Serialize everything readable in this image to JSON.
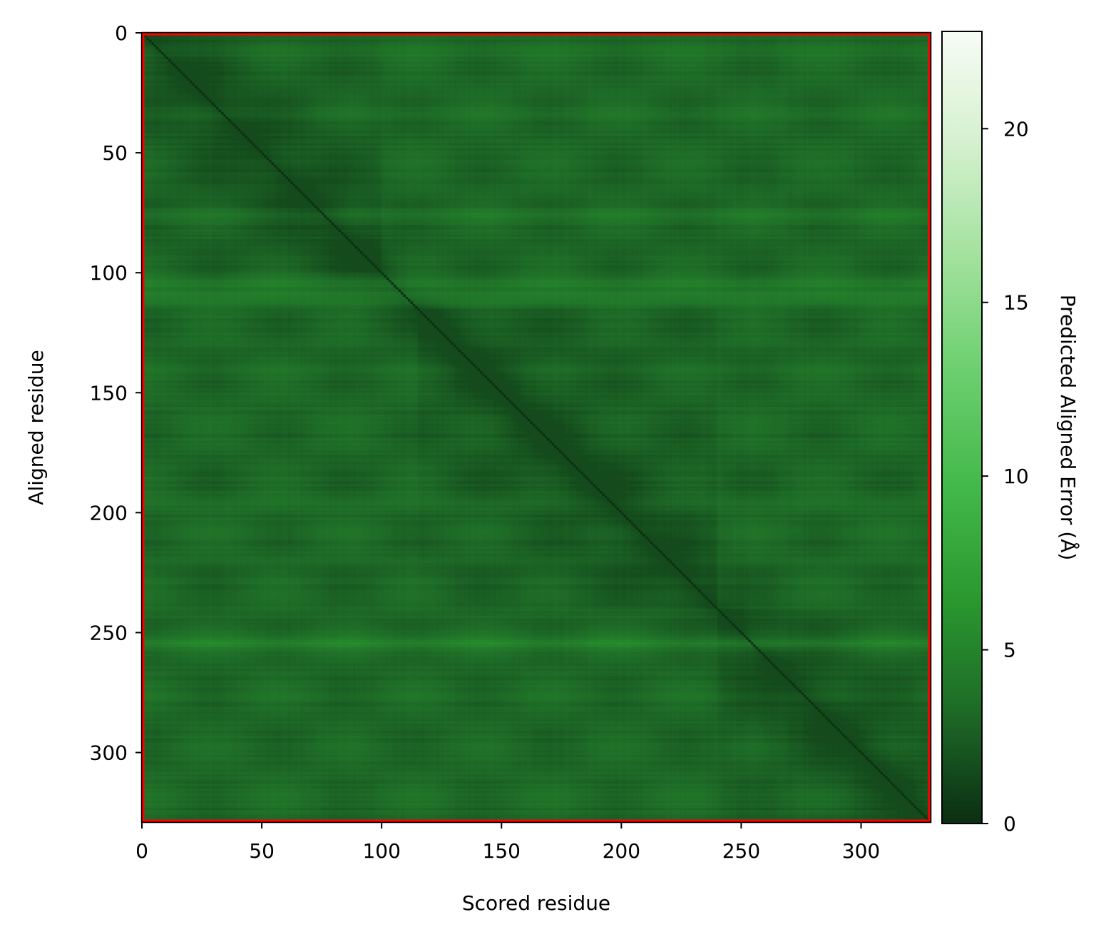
{
  "chart_data": {
    "type": "heatmap",
    "title": "",
    "xlabel": "Scored residue",
    "ylabel": "Aligned residue",
    "colorbar_label": "Predicted Aligned Error (Å)",
    "n_residues": 329,
    "xlim": [
      0,
      329
    ],
    "ylim": [
      329,
      0
    ],
    "x_ticks": [
      0,
      50,
      100,
      150,
      200,
      250,
      300
    ],
    "y_ticks": [
      0,
      50,
      100,
      150,
      200,
      250,
      300
    ],
    "colorbar_range": [
      0,
      22.8
    ],
    "colorbar_ticks": [
      0,
      5,
      10,
      15,
      20
    ],
    "colormap": [
      "#0b2e13",
      "#1e6b27",
      "#2a992f",
      "#44b94b",
      "#6ccf6f",
      "#a2e19d",
      "#d4f0ce",
      "#f7fcf5"
    ],
    "border_color": "#ff0000",
    "diagonal_error": 0.3,
    "background_error_range": [
      1.5,
      6.0
    ],
    "dominant_error_range": [
      2.0,
      4.5
    ],
    "high_error_rows": [
      {
        "center": 8,
        "error": 3.8
      },
      {
        "center": 33,
        "error": 3.7
      },
      {
        "center": 53,
        "error": 3.4
      },
      {
        "center": 76,
        "error": 4.1
      },
      {
        "center": 104,
        "error": 4.3
      },
      {
        "center": 110,
        "error": 4.6
      },
      {
        "center": 140,
        "error": 3.4
      },
      {
        "center": 155,
        "error": 3.2
      },
      {
        "center": 195,
        "error": 3.8
      },
      {
        "center": 207,
        "error": 3.4
      },
      {
        "center": 254,
        "error": 5.2
      },
      {
        "center": 275,
        "error": 3.4
      },
      {
        "center": 318,
        "error": 3.6
      }
    ],
    "low_error_domains": [
      {
        "start": 0,
        "end": 100
      },
      {
        "start": 115,
        "end": 240
      },
      {
        "start": 240,
        "end": 329
      }
    ]
  }
}
